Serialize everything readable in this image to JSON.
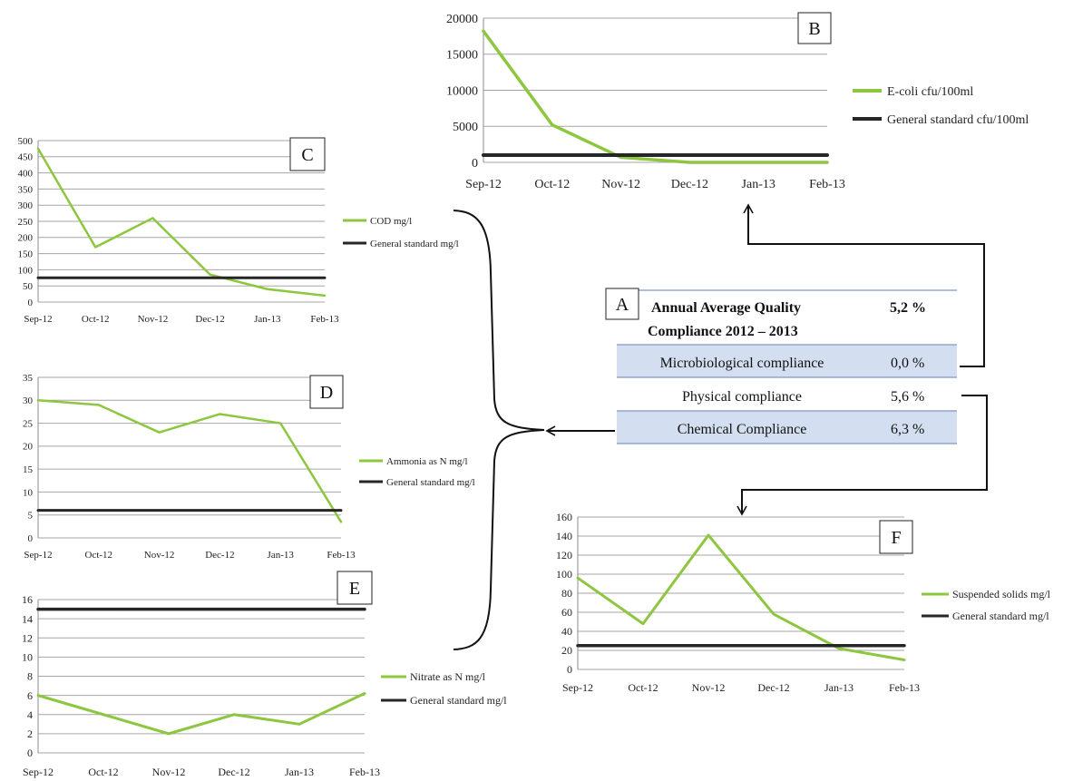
{
  "colors": {
    "series": "#8dc63f",
    "standard": "#262626",
    "grid": "#a6a6a6",
    "table_band": "#d3dff0",
    "table_rule": "#7f99c3"
  },
  "compliance_table": {
    "letter": "A",
    "title_line1": "Annual  Average Quality",
    "title_line2": "Compliance  2012 – 2013",
    "title_value": "5,2 %",
    "rows": [
      {
        "label": "Microbiological  compliance",
        "value": "0,0 %",
        "shaded": true
      },
      {
        "label": "Physical  compliance",
        "value": "5,6 %",
        "shaded": false
      },
      {
        "label": "Chemical  Compliance",
        "value": "6,3 %",
        "shaded": true
      }
    ]
  },
  "chart_data": [
    {
      "letter": "B",
      "type": "line",
      "categories": [
        "Sep-12",
        "Oct-12",
        "Nov-12",
        "Dec-12",
        "Jan-13",
        "Feb-13"
      ],
      "ylim": [
        0,
        20000
      ],
      "yticks": [
        "0",
        "5000",
        "10000",
        "15000",
        "20000"
      ],
      "grid": true,
      "legend": "right",
      "series": [
        {
          "name": "E-coli cfu/100ml",
          "values": [
            18200,
            5200,
            700,
            0,
            0,
            0
          ]
        },
        {
          "name": "General standard cfu/100ml",
          "values": [
            1000,
            1000,
            1000,
            1000,
            1000,
            1000
          ]
        }
      ]
    },
    {
      "letter": "C",
      "type": "line",
      "categories": [
        "Sep-12",
        "Oct-12",
        "Nov-12",
        "Dec-12",
        "Jan-13",
        "Feb-13"
      ],
      "ylim": [
        0,
        500
      ],
      "yticks": [
        "0",
        "50",
        "100",
        "150",
        "200",
        "250",
        "300",
        "350",
        "400",
        "450",
        "500"
      ],
      "grid": true,
      "legend": "right",
      "series": [
        {
          "name": "COD mg/l",
          "values": [
            475,
            170,
            260,
            85,
            40,
            20
          ]
        },
        {
          "name": "General standard mg/l",
          "values": [
            75,
            75,
            75,
            75,
            75,
            75
          ]
        }
      ]
    },
    {
      "letter": "D",
      "type": "line",
      "categories": [
        "Sep-12",
        "Oct-12",
        "Nov-12",
        "Dec-12",
        "Jan-13",
        "Feb-13"
      ],
      "ylim": [
        0,
        35
      ],
      "yticks": [
        "0",
        "5",
        "10",
        "15",
        "20",
        "25",
        "30",
        "35"
      ],
      "grid": true,
      "legend": "right",
      "series": [
        {
          "name": "Ammonia as N mg/l",
          "values": [
            30,
            29,
            23,
            27,
            25,
            3.5
          ]
        },
        {
          "name": "General standard mg/l",
          "values": [
            6,
            6,
            6,
            6,
            6,
            6
          ]
        }
      ]
    },
    {
      "letter": "E",
      "type": "line",
      "categories": [
        "Sep-12",
        "Oct-12",
        "Nov-12",
        "Dec-12",
        "Jan-13",
        "Feb-13"
      ],
      "ylim": [
        0,
        16
      ],
      "yticks": [
        "0",
        "2",
        "4",
        "6",
        "8",
        "10",
        "12",
        "14",
        "16"
      ],
      "grid": true,
      "legend": "right",
      "series": [
        {
          "name": "Nitrate as N  mg/l",
          "values": [
            6,
            4,
            2,
            4,
            3,
            6.2
          ]
        },
        {
          "name": "General standard mg/l",
          "values": [
            15,
            15,
            15,
            15,
            15,
            15
          ]
        }
      ]
    },
    {
      "letter": "F",
      "type": "line",
      "categories": [
        "Sep-12",
        "Oct-12",
        "Nov-12",
        "Dec-12",
        "Jan-13",
        "Feb-13"
      ],
      "ylim": [
        0,
        160
      ],
      "yticks": [
        "0",
        "20",
        "40",
        "60",
        "80",
        "100",
        "120",
        "140",
        "160"
      ],
      "grid": true,
      "legend": "right",
      "series": [
        {
          "name": "Suspended solids mg/l",
          "values": [
            96,
            48,
            141,
            58,
            22,
            10
          ]
        },
        {
          "name": "General standard mg/l",
          "values": [
            25,
            25,
            25,
            25,
            25,
            25
          ]
        }
      ]
    }
  ]
}
